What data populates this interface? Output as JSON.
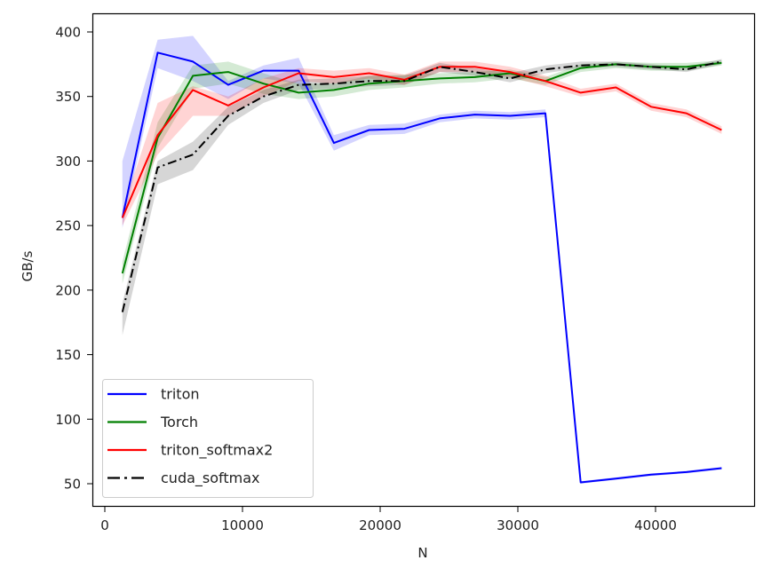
{
  "chart_data": {
    "type": "line",
    "title": "",
    "xlabel": "N",
    "ylabel": "GB/s",
    "xlim": [
      -900,
      47000
    ],
    "ylim": [
      35,
      414
    ],
    "xticks": [
      0,
      10000,
      20000,
      30000,
      40000
    ],
    "xtick_labels": [
      "0",
      "10000",
      "20000",
      "30000",
      "40000"
    ],
    "yticks": [
      50,
      100,
      150,
      200,
      250,
      300,
      350,
      400
    ],
    "ytick_labels": [
      "50",
      "100",
      "150",
      "200",
      "250",
      "300",
      "350",
      "400"
    ],
    "grid": false,
    "legend_position": "lower left",
    "x": [
      1280,
      3840,
      6400,
      8960,
      11520,
      14080,
      16640,
      19200,
      21760,
      24320,
      26880,
      29440,
      32000,
      34560,
      37120,
      39680,
      42240,
      44800
    ],
    "series": [
      {
        "name": "triton",
        "color": "#0000ff",
        "linestyle": "solid",
        "values": [
          256,
          384,
          377,
          359,
          370,
          370,
          314,
          324,
          325,
          333,
          336,
          335,
          337,
          51,
          54,
          57,
          59,
          62
        ],
        "band_low": [
          248,
          372,
          362,
          348,
          364,
          360,
          308,
          320,
          321,
          330,
          333,
          332,
          334,
          50,
          53,
          56,
          58,
          61
        ],
        "band_high": [
          300,
          394,
          397,
          362,
          374,
          380,
          320,
          328,
          329,
          336,
          339,
          338,
          340,
          52,
          55,
          58,
          60,
          63
        ]
      },
      {
        "name": "Torch",
        "color": "#008000",
        "linestyle": "solid",
        "values": [
          213,
          318,
          366,
          369,
          360,
          353,
          355,
          360,
          362,
          364,
          365,
          368,
          362,
          372,
          375,
          373,
          373,
          376
        ],
        "band_low": [
          205,
          310,
          356,
          360,
          352,
          348,
          350,
          355,
          357,
          360,
          361,
          364,
          359,
          369,
          372,
          370,
          370,
          374
        ],
        "band_high": [
          222,
          330,
          374,
          377,
          368,
          360,
          360,
          366,
          367,
          368,
          369,
          371,
          365,
          375,
          377,
          376,
          376,
          378
        ]
      },
      {
        "name": "triton_softmax2",
        "color": "#ff0000",
        "linestyle": "solid",
        "values": [
          256,
          320,
          355,
          343,
          357,
          368,
          365,
          368,
          363,
          373,
          373,
          369,
          362,
          353,
          357,
          342,
          337,
          324
        ],
        "band_low": [
          250,
          305,
          335,
          335,
          350,
          362,
          360,
          364,
          359,
          369,
          369,
          365,
          358,
          350,
          354,
          339,
          334,
          321
        ],
        "band_high": [
          262,
          345,
          358,
          350,
          364,
          372,
          370,
          372,
          367,
          377,
          377,
          373,
          366,
          356,
          360,
          345,
          340,
          327
        ]
      },
      {
        "name": "cuda_softmax",
        "color": "#000000",
        "linestyle": "dashdot",
        "values": [
          183,
          295,
          305,
          335,
          350,
          359,
          360,
          362,
          362,
          373,
          369,
          364,
          371,
          374,
          375,
          373,
          371,
          377
        ],
        "band_low": [
          165,
          282,
          293,
          328,
          345,
          355,
          356,
          358,
          359,
          369,
          366,
          361,
          368,
          372,
          373,
          371,
          369,
          375
        ],
        "band_high": [
          190,
          300,
          315,
          342,
          355,
          363,
          364,
          366,
          366,
          376,
          372,
          368,
          374,
          377,
          377,
          375,
          373,
          379
        ]
      }
    ]
  }
}
